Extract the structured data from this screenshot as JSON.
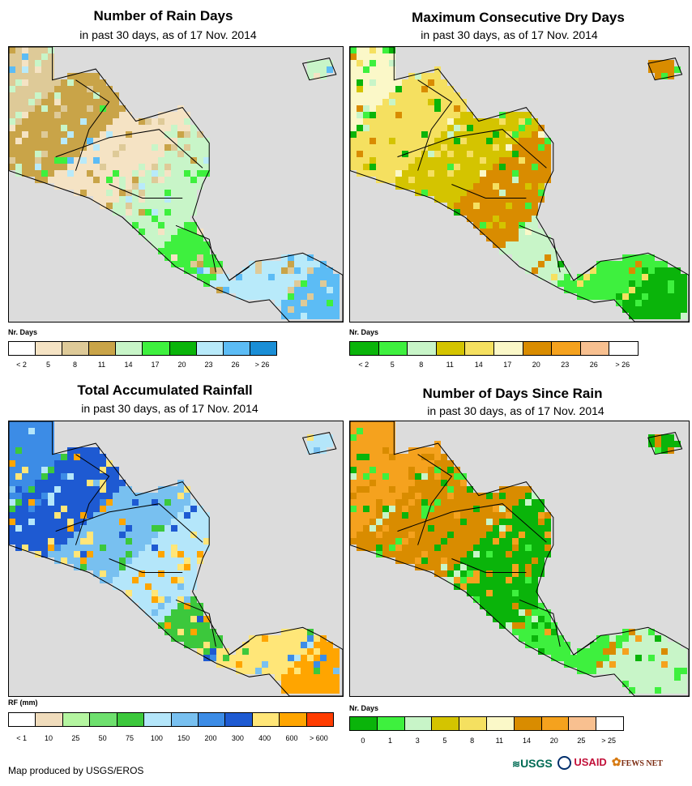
{
  "credit": "Map produced by USGS/EROS",
  "logos": {
    "usgs": "USGS",
    "usaid": "USAID",
    "fews": "FEWS NET"
  },
  "panels": [
    {
      "title": "Number of Rain Days",
      "subtitle": "in past 30 days, as of 17 Nov. 2014",
      "legend_title": "Nr. Days",
      "legend_colors": [
        "#ffffff",
        "#f5e3c4",
        "#deca98",
        "#c9a448",
        "#c8f5c8",
        "#3ef03e",
        "#0ab40a",
        "#b8eafa",
        "#5cbcf5",
        "#1a8ed6"
      ],
      "legend_labels": [
        "< 2",
        "5",
        "8",
        "11",
        "14",
        "17",
        "20",
        "23",
        "26",
        "> 26"
      ],
      "land_colors": [
        "#deca98",
        "#c9a448",
        "#f5e3c4",
        "#c8f5c8",
        "#3ef03e",
        "#b8eafa",
        "#5cbcf5"
      ]
    },
    {
      "title": "Maximum Consecutive Dry Days",
      "subtitle": "in past 30 days, as of 17 Nov. 2014",
      "legend_title": "Nr. Days",
      "legend_colors": [
        "#0ab40a",
        "#3ef03e",
        "#c8f5c8",
        "#d4c400",
        "#f5e060",
        "#fbf8c8",
        "#d98c00",
        "#f5a21e",
        "#f8c090",
        "#ffffff"
      ],
      "legend_labels": [
        "< 2",
        "5",
        "8",
        "11",
        "14",
        "17",
        "20",
        "23",
        "26",
        "> 26"
      ],
      "land_colors": [
        "#fbf8c8",
        "#f5e060",
        "#d4c400",
        "#d98c00",
        "#c8f5c8",
        "#3ef03e",
        "#0ab40a"
      ]
    },
    {
      "title": "Total Accumulated Rainfall",
      "subtitle": "in past 30 days, as of 17 Nov. 2014",
      "legend_title": "RF (mm)",
      "legend_colors": [
        "#ffffff",
        "#f0dcbc",
        "#b4f5a0",
        "#6ee06e",
        "#3cc83c",
        "#b4e6fa",
        "#78c0f0",
        "#3c8ce6",
        "#1e5ad2",
        "#ffe678",
        "#ffa500",
        "#ff3c00"
      ],
      "legend_labels": [
        "< 1",
        "10",
        "25",
        "50",
        "75",
        "100",
        "150",
        "200",
        "300",
        "400",
        "600",
        "> 600"
      ],
      "land_colors": [
        "#3c8ce6",
        "#1e5ad2",
        "#78c0f0",
        "#b4e6fa",
        "#3cc83c",
        "#ffe678",
        "#ffa500"
      ]
    },
    {
      "title": "Number of Days Since Rain",
      "subtitle": "in past 30 days, as of 17 Nov. 2014",
      "legend_title": "Nr. Days",
      "legend_colors": [
        "#0ab40a",
        "#3ef03e",
        "#c8f5c8",
        "#d4c400",
        "#f5e060",
        "#fbf8c8",
        "#d98c00",
        "#f5a21e",
        "#f8c090",
        "#ffffff"
      ],
      "legend_labels": [
        "0",
        "1",
        "3",
        "5",
        "8",
        "11",
        "14",
        "20",
        "25",
        "> 25"
      ],
      "land_colors": [
        "#f5a21e",
        "#d98c00",
        "#0ab40a",
        "#3ef03e",
        "#c8f5c8"
      ]
    }
  ]
}
